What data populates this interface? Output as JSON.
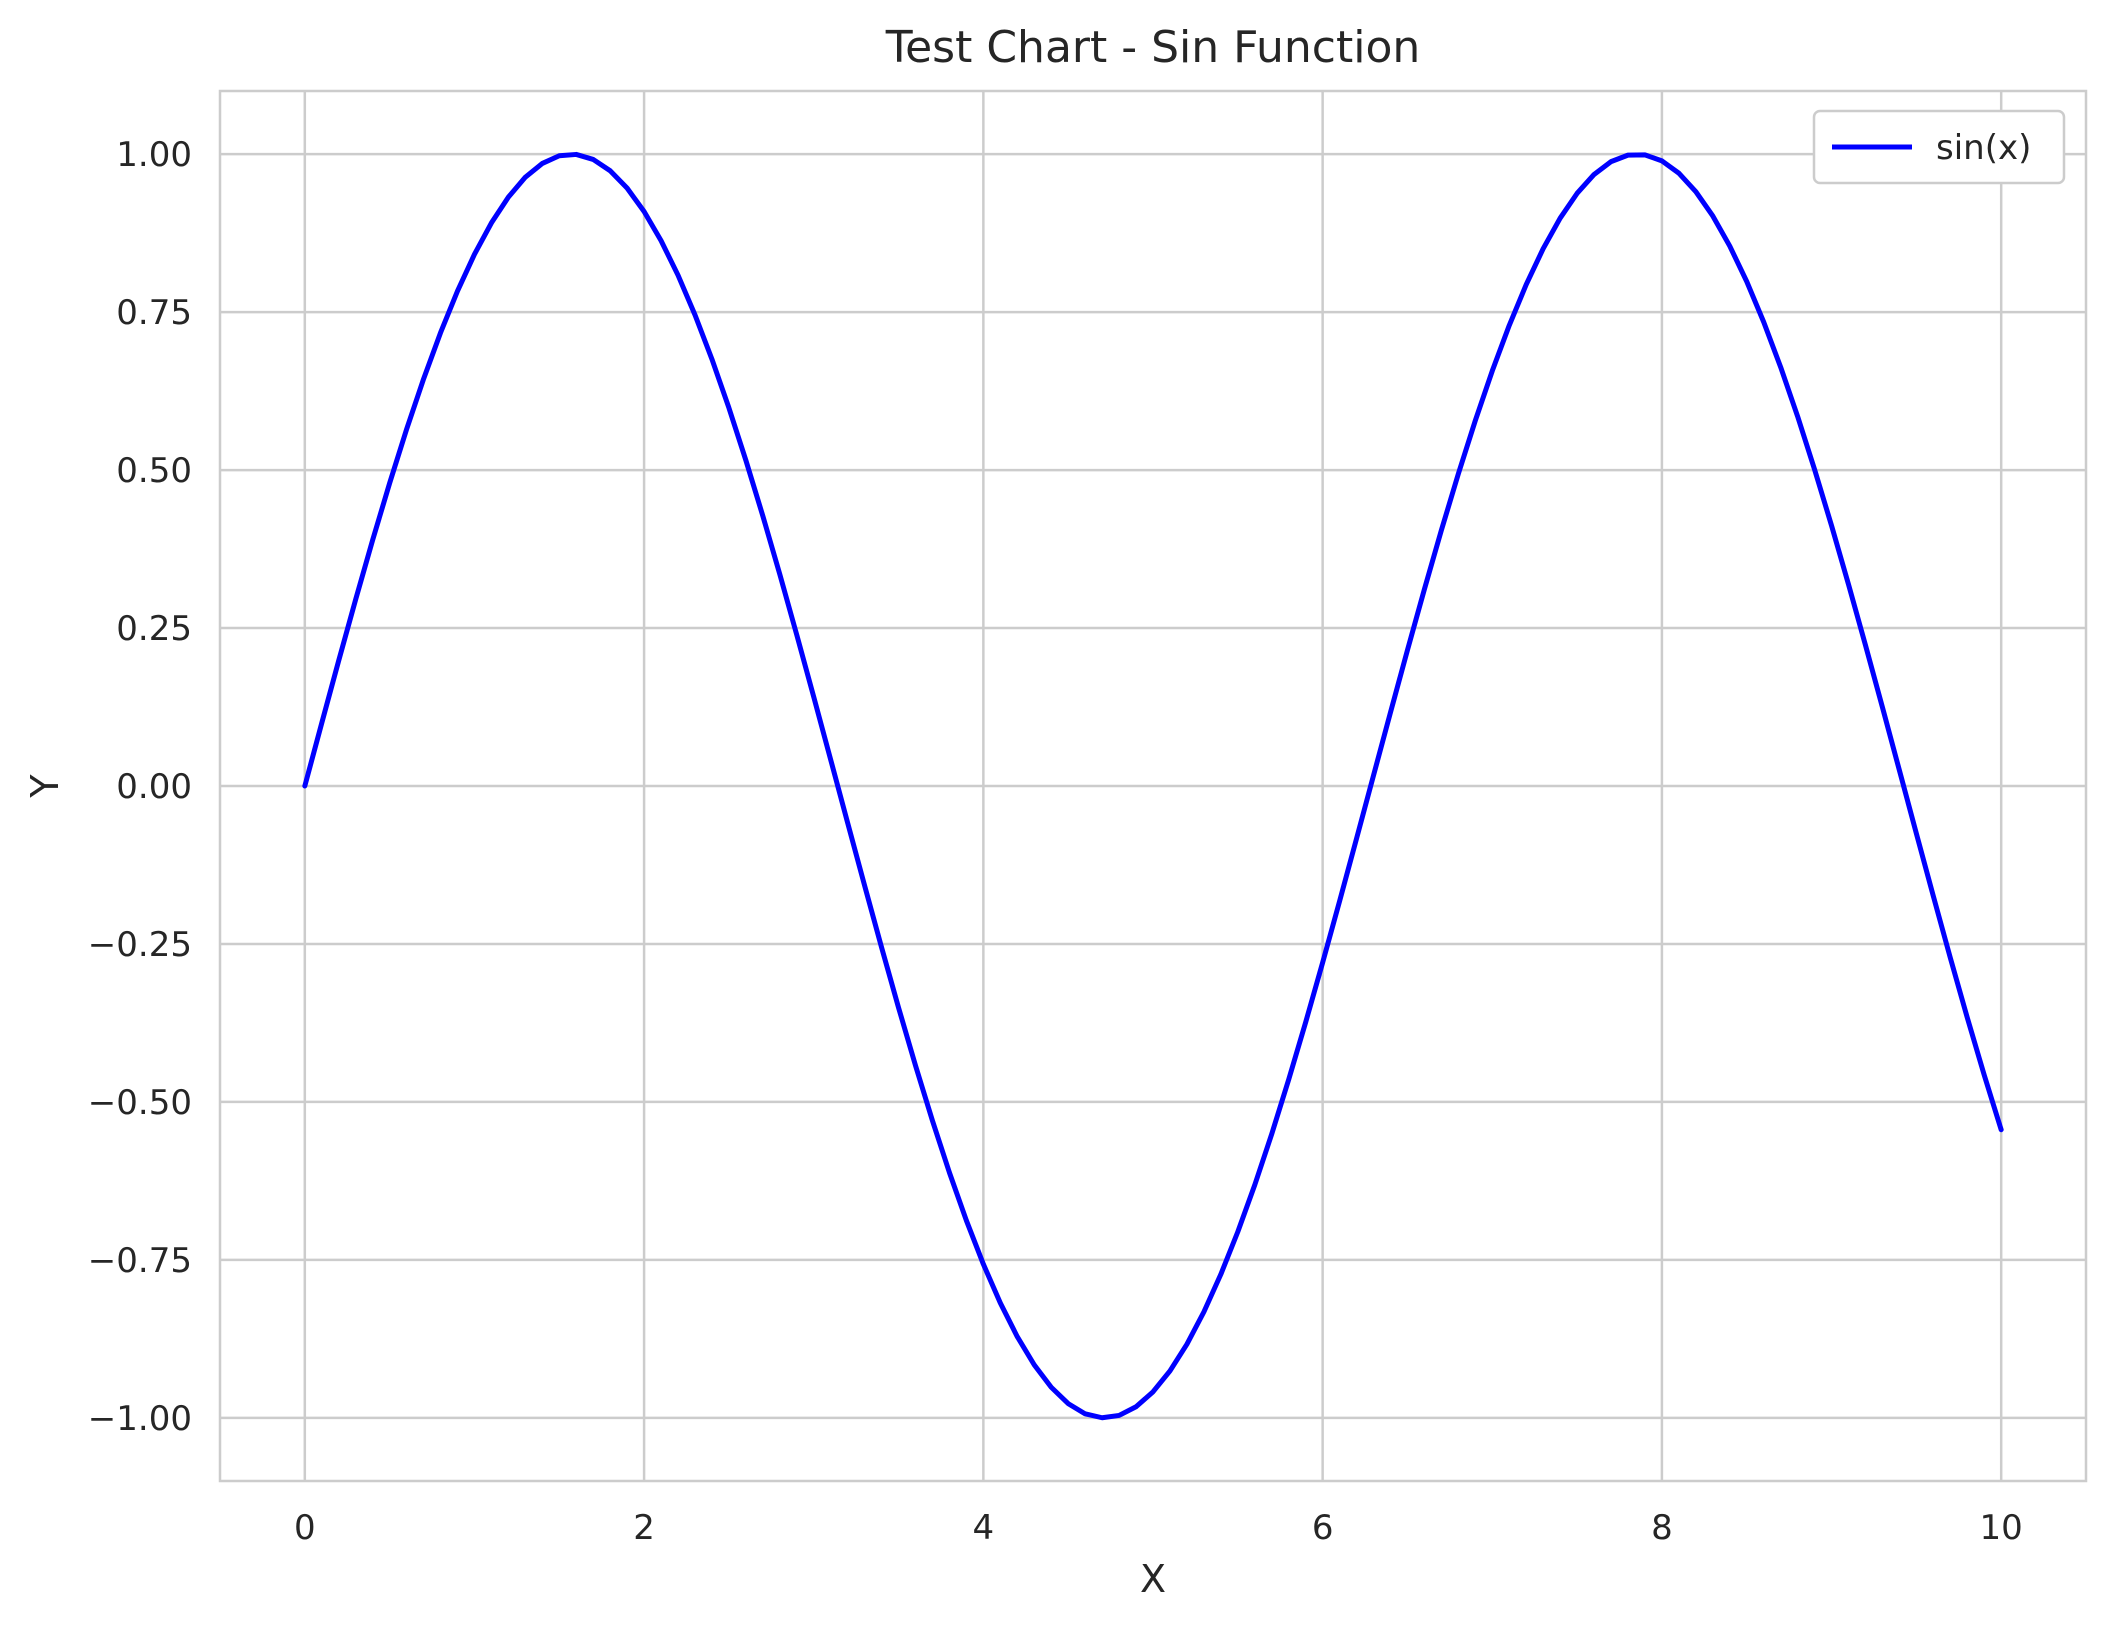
{
  "chart_data": {
    "type": "line",
    "title": "Test Chart - Sin Function",
    "xlabel": "X",
    "ylabel": "Y",
    "xlim": [
      -0.5,
      10.5
    ],
    "ylim": [
      -1.1,
      1.1
    ],
    "xticks": [
      0,
      2,
      4,
      6,
      8,
      10
    ],
    "xtick_labels": [
      "0",
      "2",
      "4",
      "6",
      "8",
      "10"
    ],
    "yticks": [
      1.0,
      0.75,
      0.5,
      0.25,
      0.0,
      -0.25,
      -0.5,
      -0.75,
      -1.0
    ],
    "ytick_labels": [
      "1.00",
      "0.75",
      "0.50",
      "0.25",
      "0.00",
      "−0.25",
      "−0.50",
      "−0.75",
      "−1.00"
    ],
    "grid": true,
    "legend_position": "top-right",
    "series": [
      {
        "name": "sin(x)",
        "color": "#0000ff",
        "x": [
          0,
          0.1,
          0.2,
          0.3,
          0.4,
          0.5,
          0.6,
          0.7,
          0.8,
          0.9,
          1.0,
          1.1,
          1.2,
          1.3,
          1.4,
          1.5,
          1.6,
          1.7,
          1.8,
          1.9,
          2.0,
          2.1,
          2.2,
          2.3,
          2.4,
          2.5,
          2.6,
          2.7,
          2.8,
          2.9,
          3.0,
          3.1,
          3.2,
          3.3,
          3.4,
          3.5,
          3.6,
          3.7,
          3.8,
          3.9,
          4.0,
          4.1,
          4.2,
          4.3,
          4.4,
          4.5,
          4.6,
          4.7,
          4.8,
          4.9,
          5.0,
          5.1,
          5.2,
          5.3,
          5.4,
          5.5,
          5.6,
          5.7,
          5.8,
          5.9,
          6.0,
          6.1,
          6.2,
          6.3,
          6.4,
          6.5,
          6.6,
          6.7,
          6.8,
          6.9,
          7.0,
          7.1,
          7.2,
          7.3,
          7.4,
          7.5,
          7.6,
          7.7,
          7.8,
          7.9,
          8.0,
          8.1,
          8.2,
          8.3,
          8.4,
          8.5,
          8.6,
          8.7,
          8.8,
          8.9,
          9.0,
          9.1,
          9.2,
          9.3,
          9.4,
          9.5,
          9.6,
          9.7,
          9.8,
          9.9,
          10.0
        ],
        "y": [
          0.0,
          0.0998,
          0.1987,
          0.2955,
          0.3894,
          0.4794,
          0.5646,
          0.6442,
          0.7174,
          0.7833,
          0.8415,
          0.8912,
          0.932,
          0.9636,
          0.9854,
          0.9975,
          0.9996,
          0.9917,
          0.9738,
          0.9463,
          0.9093,
          0.8632,
          0.8085,
          0.7457,
          0.6755,
          0.5985,
          0.5155,
          0.4274,
          0.335,
          0.2392,
          0.1411,
          0.0416,
          -0.0584,
          -0.1577,
          -0.2555,
          -0.3508,
          -0.4425,
          -0.5298,
          -0.6119,
          -0.6878,
          -0.7568,
          -0.8183,
          -0.8716,
          -0.9162,
          -0.9516,
          -0.9775,
          -0.9937,
          -0.9999,
          -0.9962,
          -0.9825,
          -0.9589,
          -0.9258,
          -0.8835,
          -0.8323,
          -0.7728,
          -0.7055,
          -0.6313,
          -0.5507,
          -0.4646,
          -0.3739,
          -0.2794,
          -0.1822,
          -0.0831,
          0.0168,
          0.1165,
          0.2151,
          0.3115,
          0.4048,
          0.4941,
          0.5784,
          0.657,
          0.729,
          0.7937,
          0.8504,
          0.8987,
          0.938,
          0.9679,
          0.9882,
          0.9985,
          0.9989,
          0.9894,
          0.9699,
          0.9407,
          0.9022,
          0.8546,
          0.7985,
          0.7344,
          0.663,
          0.585,
          0.501,
          0.4121,
          0.319,
          0.2229,
          0.1245,
          0.0248,
          -0.0752,
          -0.1743,
          -0.2718,
          -0.3665,
          -0.4575,
          -0.544
        ]
      }
    ]
  }
}
